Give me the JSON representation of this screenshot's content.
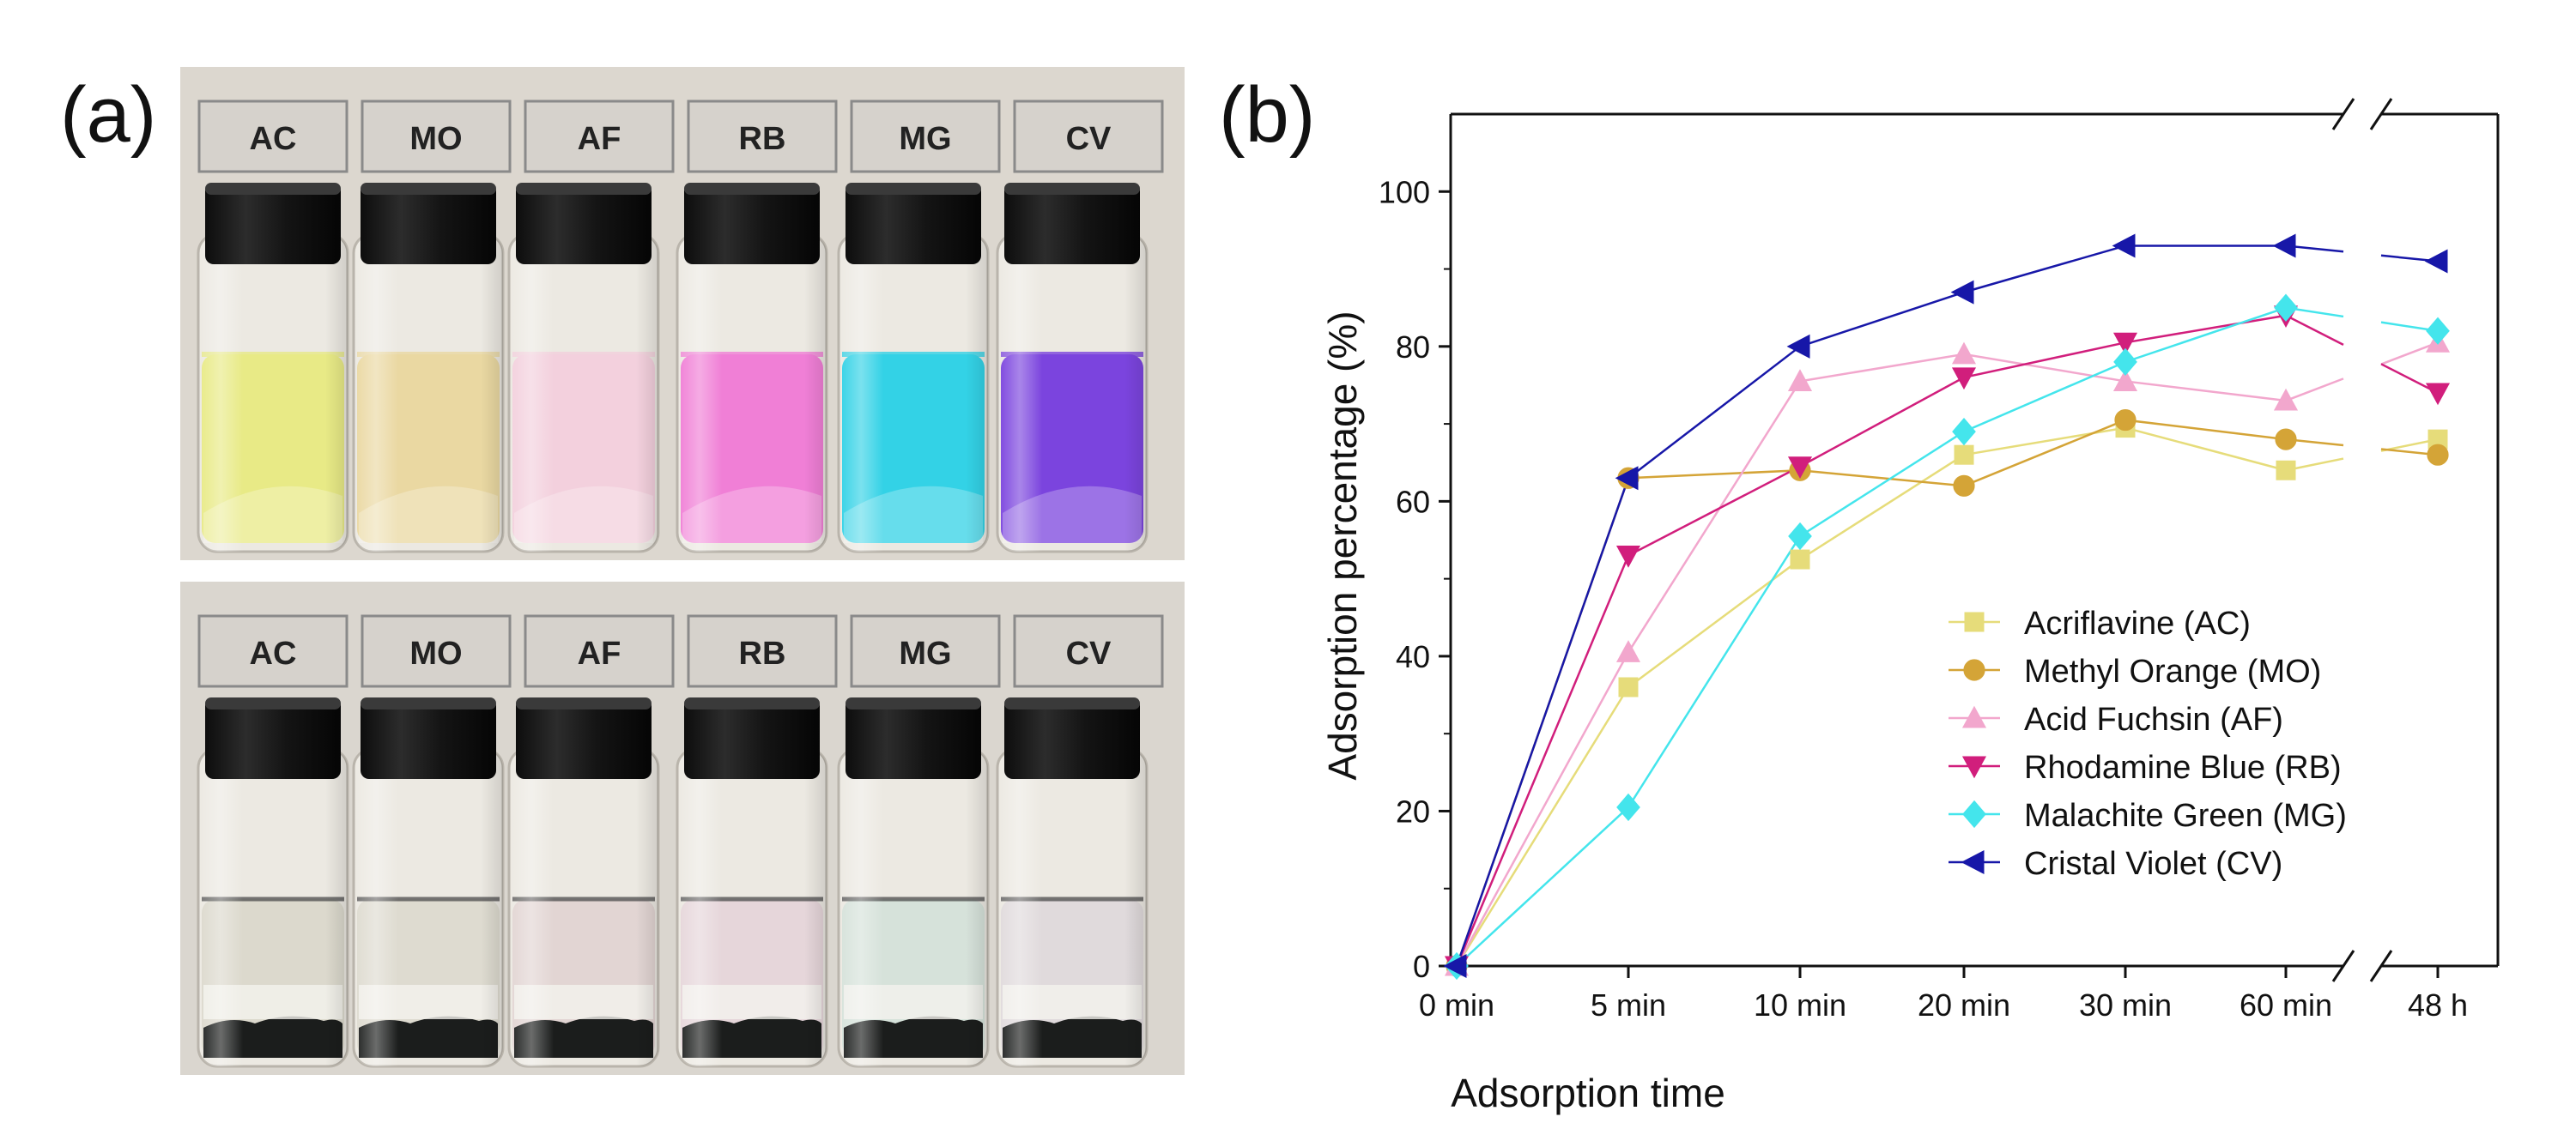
{
  "panel_a": {
    "label": "(a)",
    "top_row": {
      "labels": [
        "AC",
        "MO",
        "AF",
        "RB",
        "MG",
        "CV"
      ],
      "liquid_colors": [
        "#e8ea86",
        "#ead8a2",
        "#f3d0dd",
        "#f07fd6",
        "#33d2e6",
        "#7b44de"
      ]
    },
    "bottom_row": {
      "labels": [
        "AC",
        "MO",
        "AF",
        "RB",
        "MG",
        "CV"
      ],
      "liquid_colors": [
        "#dcd9cd",
        "#dedbd0",
        "#e2d5d3",
        "#e6d6da",
        "#d6e2da",
        "#e0dadc"
      ]
    }
  },
  "panel_b": {
    "label": "(b)"
  },
  "chart_data": {
    "type": "line",
    "xlabel": "Adsorption time",
    "ylabel": "Adsorption percentage (%)",
    "ylim": [
      0,
      110
    ],
    "yticks": [
      0,
      20,
      40,
      60,
      80,
      100
    ],
    "categories": [
      "0 min",
      "5 min",
      "10 min",
      "20 min",
      "30 min",
      "60 min",
      "48 h"
    ],
    "x_break": "between 60 min and 48 h",
    "legend_position": "lower-right",
    "series": [
      {
        "name": "Acriflavine (AC)",
        "marker": "square",
        "color": "#e6dc7a",
        "values": [
          0,
          36,
          52.5,
          66,
          69.5,
          64,
          68
        ]
      },
      {
        "name": "Methyl Orange (MO)",
        "marker": "circle",
        "color": "#d4a437",
        "values": [
          0,
          63,
          64,
          62,
          70.5,
          68,
          66
        ]
      },
      {
        "name": "Acid Fuchsin (AF)",
        "marker": "triangle-up",
        "color": "#f2a7cd",
        "values": [
          0,
          40.5,
          75.5,
          79,
          75.5,
          73,
          80.5
        ]
      },
      {
        "name": "Rhodamine Blue (RB)",
        "marker": "triangle-down",
        "color": "#d11e7c",
        "values": [
          0,
          53,
          64.5,
          76,
          80.5,
          84,
          74
        ]
      },
      {
        "name": "Malachite Green (MG)",
        "marker": "diamond",
        "color": "#44e5ec",
        "values": [
          0,
          20.5,
          55.5,
          69,
          78,
          85,
          82
        ]
      },
      {
        "name": "Cristal Violet (CV)",
        "marker": "triangle-left",
        "color": "#1717a8",
        "values": [
          0,
          63,
          80,
          87,
          93,
          93,
          91
        ]
      }
    ]
  }
}
